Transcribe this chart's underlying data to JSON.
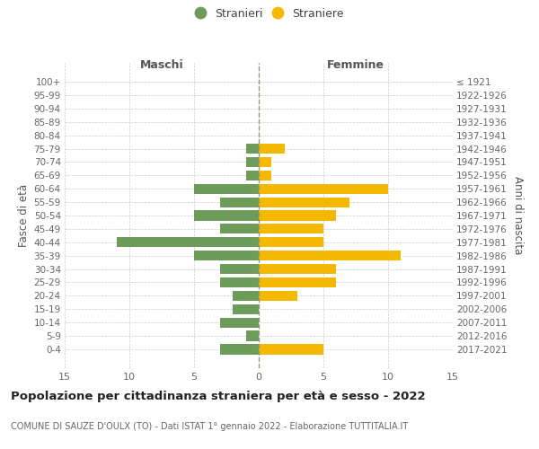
{
  "age_groups": [
    "100+",
    "95-99",
    "90-94",
    "85-89",
    "80-84",
    "75-79",
    "70-74",
    "65-69",
    "60-64",
    "55-59",
    "50-54",
    "45-49",
    "40-44",
    "35-39",
    "30-34",
    "25-29",
    "20-24",
    "15-19",
    "10-14",
    "5-9",
    "0-4"
  ],
  "birth_years": [
    "≤ 1921",
    "1922-1926",
    "1927-1931",
    "1932-1936",
    "1937-1941",
    "1942-1946",
    "1947-1951",
    "1952-1956",
    "1957-1961",
    "1962-1966",
    "1967-1971",
    "1972-1976",
    "1977-1981",
    "1982-1986",
    "1987-1991",
    "1992-1996",
    "1997-2001",
    "2002-2006",
    "2007-2011",
    "2012-2016",
    "2017-2021"
  ],
  "maschi": [
    0,
    0,
    0,
    0,
    0,
    1,
    1,
    1,
    5,
    3,
    5,
    3,
    11,
    5,
    3,
    3,
    2,
    2,
    3,
    1,
    3
  ],
  "femmine": [
    0,
    0,
    0,
    0,
    0,
    2,
    1,
    1,
    10,
    7,
    6,
    5,
    5,
    11,
    6,
    6,
    3,
    0,
    0,
    0,
    5
  ],
  "color_maschi": "#6d9b5a",
  "color_femmine": "#f5b800",
  "title": "Popolazione per cittadinanza straniera per età e sesso - 2022",
  "subtitle": "COMUNE DI SAUZE D'OULX (TO) - Dati ISTAT 1° gennaio 2022 - Elaborazione TUTTITALIA.IT",
  "legend_maschi": "Stranieri",
  "legend_femmine": "Straniere",
  "header_left": "Maschi",
  "header_right": "Femmine",
  "ylabel_left": "Fasce di età",
  "ylabel_right": "Anni di nascita",
  "xlim": 15,
  "background_color": "#ffffff",
  "grid_color": "#cccccc",
  "text_color": "#666666",
  "dashed_line_color": "#999977",
  "title_fontsize": 9.5,
  "subtitle_fontsize": 7.0
}
